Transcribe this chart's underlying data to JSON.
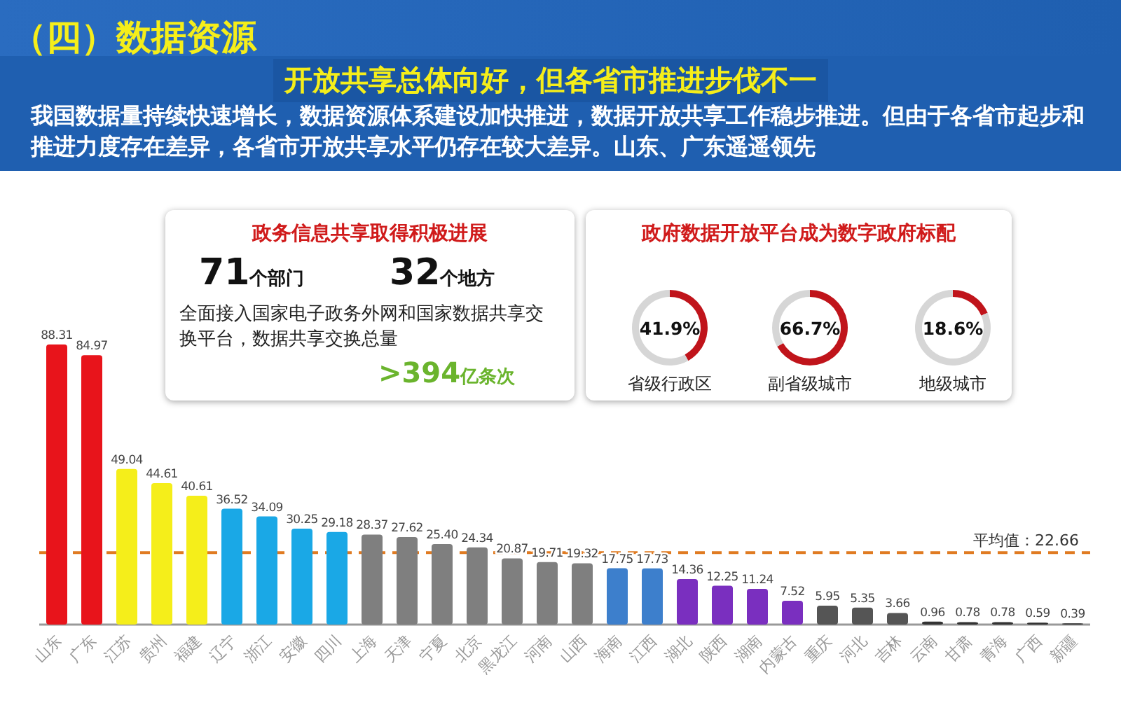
{
  "chart_data": [
    {
      "type": "bar",
      "title": "（四）数据资源",
      "subtitle": "开放共享总体向好，但各省市推进步伐不一",
      "annotations": [
        "我国数据量持续快速增长，数据资源体系建设加快推进，数据开放共享工作稳步推进。但由于各省市起步和推进力度存在差异，各省市开放共享水平仍存在较大差异。山东、广东遥遥领先"
      ],
      "categories": [
        "山东",
        "广东",
        "江苏",
        "贵州",
        "福建",
        "辽宁",
        "浙江",
        "安徽",
        "四川",
        "上海",
        "天津",
        "宁夏",
        "北京",
        "黑龙江",
        "河南",
        "山西",
        "海南",
        "江西",
        "湖北",
        "陕西",
        "湖南",
        "内蒙古",
        "重庆",
        "河北",
        "吉林",
        "云南",
        "甘肃",
        "青海",
        "广西",
        "新疆"
      ],
      "values": [
        88.31,
        84.97,
        49.04,
        44.61,
        40.61,
        36.52,
        34.09,
        30.25,
        29.18,
        28.37,
        27.62,
        25.4,
        24.34,
        20.87,
        19.71,
        19.32,
        17.75,
        17.73,
        14.36,
        12.25,
        11.24,
        7.52,
        5.95,
        5.35,
        3.66,
        0.96,
        0.78,
        0.78,
        0.59,
        0.39
      ],
      "colors": [
        "#e8141b",
        "#e8141b",
        "#f5ee1a",
        "#f5ee1a",
        "#f5ee1a",
        "#1aa8e6",
        "#1aa8e6",
        "#1aa8e6",
        "#1aa8e6",
        "#7f7f7f",
        "#7f7f7f",
        "#7f7f7f",
        "#7f7f7f",
        "#7f7f7f",
        "#7f7f7f",
        "#7f7f7f",
        "#3d7fcc",
        "#3d7fcc",
        "#7a2fbf",
        "#7a2fbf",
        "#7a2fbf",
        "#7a2fbf",
        "#555555",
        "#555555",
        "#555555",
        "#333333",
        "#333333",
        "#333333",
        "#333333",
        "#333333"
      ],
      "value_labels": [
        "88.31",
        "84.97",
        "49.04",
        "44.61",
        "40.61",
        "36.52",
        "34.09",
        "30.25",
        "29.18",
        "28.37",
        "27.62",
        "25.40",
        "24.34",
        "20.87",
        "19.71",
        "19.32",
        "17.75",
        "17.73",
        "14.36",
        "12.25",
        "11.24",
        "7.52",
        "5.95",
        "5.35",
        "3.66",
        "0.96",
        "0.78",
        "0.78",
        "0.59",
        "0.39"
      ],
      "ref_lines": [
        {
          "axis": "y",
          "value": 22.66,
          "label": "平均值：22.66",
          "color": "#e07b22",
          "line_style": "dashed"
        }
      ],
      "grid": false
    },
    {
      "type": "other",
      "title": "政务信息共享取得积极进展",
      "annotations": [
        "71个部门",
        "32个地方",
        "全面接入国家电子政务外网和国家数据共享交换平台，数据共享交换总量",
        ">394亿条次"
      ]
    },
    {
      "type": "other",
      "title": "政府数据开放平台成为数字政府标配"
    },
    {
      "type": "donut",
      "title": "省级行政区",
      "categories": [
        null,
        null
      ],
      "values": [
        41.9,
        58.1
      ],
      "colors": [
        "#c0141b",
        "#d6d6d6"
      ],
      "annotations": [
        "41.9%"
      ]
    },
    {
      "type": "donut",
      "title": "副省级城市",
      "categories": [
        null,
        null
      ],
      "values": [
        66.7,
        33.3
      ],
      "colors": [
        "#c0141b",
        "#d6d6d6"
      ],
      "annotations": [
        "66.7%"
      ]
    },
    {
      "type": "donut",
      "title": "地级城市",
      "categories": [
        null,
        null
      ],
      "values": [
        18.6,
        81.4
      ],
      "colors": [
        "#c0141b",
        "#d6d6d6"
      ],
      "annotations": [
        "18.6%"
      ]
    }
  ]
}
